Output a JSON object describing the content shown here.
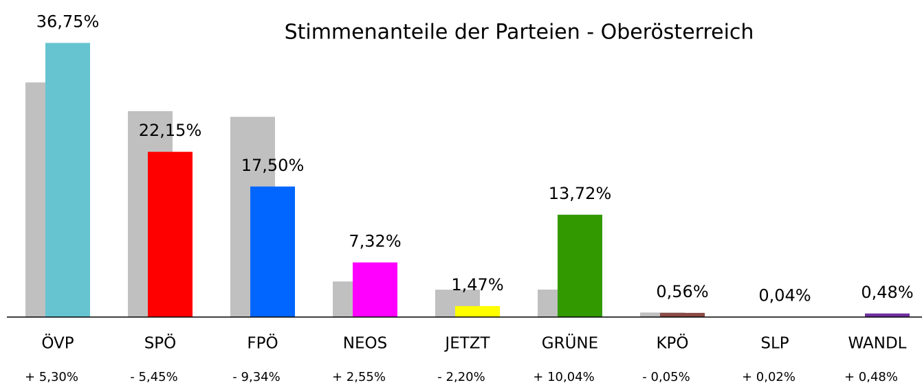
{
  "chart_data": {
    "type": "bar",
    "title": "Stimmenanteile der Parteien - Oberösterreich",
    "categories": [
      "ÖVP",
      "SPÖ",
      "FPÖ",
      "NEOS",
      "JETZT",
      "GRÜNE",
      "KPÖ",
      "SLP",
      "WANDL"
    ],
    "series": [
      {
        "color": "#c0c0c0",
        "values": [
          31.45,
          27.6,
          26.84,
          4.77,
          3.67,
          3.68,
          0.61,
          0.02,
          0
        ]
      },
      {
        "colors": [
          "#66c4d1",
          "#ff0000",
          "#0066ff",
          "#ff00ff",
          "#ffff00",
          "#339900",
          "#8b4a45",
          "#999999",
          "#7030a0"
        ],
        "values": [
          36.75,
          22.15,
          17.5,
          7.32,
          1.47,
          13.72,
          0.56,
          0.04,
          0.48
        ],
        "value_labels": [
          "36,75%",
          "22,15%",
          "17,50%",
          "7,32%",
          "1,47%",
          "13,72%",
          "0,56%",
          "0,04%",
          "0,48%"
        ]
      }
    ],
    "change_labels": [
      "+ 5,30%",
      "- 5,45%",
      "- 9,34%",
      "+ 2,55%",
      "- 2,20%",
      "+ 10,04%",
      "- 0,05%",
      "+ 0,02%",
      "+ 0,48%"
    ],
    "ylim": [
      0,
      42.5
    ]
  }
}
